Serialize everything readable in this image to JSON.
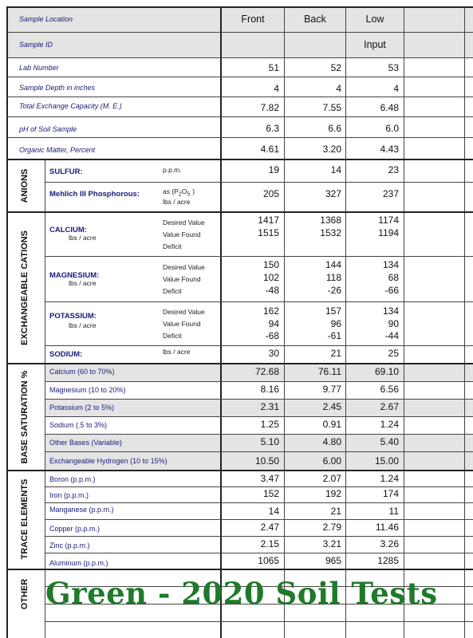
{
  "columns": {
    "front": "Front",
    "back": "Back",
    "low": "Low",
    "input": "Input"
  },
  "top_rows": [
    {
      "label": "Sample Location",
      "front": "",
      "back": "",
      "low": ""
    },
    {
      "label": "Sample ID",
      "front": "",
      "back": "",
      "low": ""
    },
    {
      "label": "Lab Number",
      "front": "51",
      "back": "52",
      "low": "53"
    },
    {
      "label": "Sample Depth in inches",
      "front": "4",
      "back": "4",
      "low": "4"
    },
    {
      "label": "Total Exchange Capacity (M. E.)",
      "front": "7.82",
      "back": "7.55",
      "low": "6.48"
    },
    {
      "label": "pH of Soil Sample",
      "front": "6.3",
      "back": "6.6",
      "low": "6.0"
    },
    {
      "label": "Organic Matter, Percent",
      "front": "4.61",
      "back": "3.20",
      "low": "4.43"
    }
  ],
  "anions": {
    "section": "ANIONS",
    "sulfur": {
      "label": "SULFUR:",
      "unit": "p.p.m.",
      "front": "19",
      "back": "14",
      "low": "23"
    },
    "phos": {
      "label": "Mehlich III Phosphorous:",
      "unit1": "as (P",
      "sub2": "2",
      "o": "O",
      "sub5": "5",
      "close": ")",
      "unit2": "lbs / acre",
      "front": "205",
      "back": "327",
      "low": "237"
    }
  },
  "cations": {
    "section": "EXCHANGEABLE CATIONS",
    "desired": "Desired Value",
    "found": "Value Found",
    "deficit": "Deficit",
    "unit": "lbs / acre",
    "calcium": {
      "label": "CALCIUM:",
      "front": [
        "1417",
        "1515",
        ""
      ],
      "back": [
        "1368",
        "1532",
        ""
      ],
      "low": [
        "1174",
        "1194",
        ""
      ]
    },
    "magnesium": {
      "label": "MAGNESIUM:",
      "front": [
        "150",
        "102",
        "-48"
      ],
      "back": [
        "144",
        "118",
        "-26"
      ],
      "low": [
        "134",
        "68",
        "-66"
      ]
    },
    "potassium": {
      "label": "POTASSIUM:",
      "front": [
        "162",
        "94",
        "-68"
      ],
      "back": [
        "157",
        "96",
        "-61"
      ],
      "low": [
        "134",
        "90",
        "-44"
      ]
    },
    "sodium": {
      "label": "SODIUM:",
      "unit": "lbs / acre",
      "front": "30",
      "back": "21",
      "low": "25"
    }
  },
  "base_saturation": {
    "section": "BASE SATURATION %",
    "rows": [
      {
        "label": "Calcium (60 to 70%)",
        "front": "72.68",
        "back": "76.11",
        "low": "69.10"
      },
      {
        "label": "Magnesium (10 to 20%)",
        "front": "8.16",
        "back": "9.77",
        "low": "6.56"
      },
      {
        "label": "Potassium (2 to 5%)",
        "front": "2.31",
        "back": "2.45",
        "low": "2.67"
      },
      {
        "label": "Sodium (.5 to 3%)",
        "front": "1.25",
        "back": "0.91",
        "low": "1.24"
      },
      {
        "label": "Other Bases (Variable)",
        "front": "5.10",
        "back": "4.80",
        "low": "5.40"
      },
      {
        "label": "Exchangeable Hydrogen (10 to 15%)",
        "front": "10.50",
        "back": "6.00",
        "low": "15.00"
      }
    ]
  },
  "trace": {
    "section": "TRACE ELEMENTS",
    "rows": [
      {
        "label": "Boron (p.p.m.)",
        "front": "3.47",
        "back": "2.07",
        "low": "1.24"
      },
      {
        "label": "Iron (p.p.m.)",
        "front": "152",
        "back": "192",
        "low": "174"
      },
      {
        "label": "Manganese (p.p.m.)",
        "front": "14",
        "back": "21",
        "low": "11"
      },
      {
        "label": "Copper (p.p.m.)",
        "front": "2.47",
        "back": "2.79",
        "low": "11.46"
      },
      {
        "label": "Zinc (p.p.m.)",
        "front": "2.15",
        "back": "3.21",
        "low": "3.26"
      },
      {
        "label": "Aluminum (p.p.m.)",
        "front": "1065",
        "back": "965",
        "low": "1285"
      }
    ]
  },
  "other": {
    "section": "OTHER"
  },
  "banner": "Green - 2020 Soil Tests",
  "colors": {
    "banner": "#1f7a2a",
    "label_blue": "#1a1a7a",
    "shade": "#e4e4e4"
  }
}
